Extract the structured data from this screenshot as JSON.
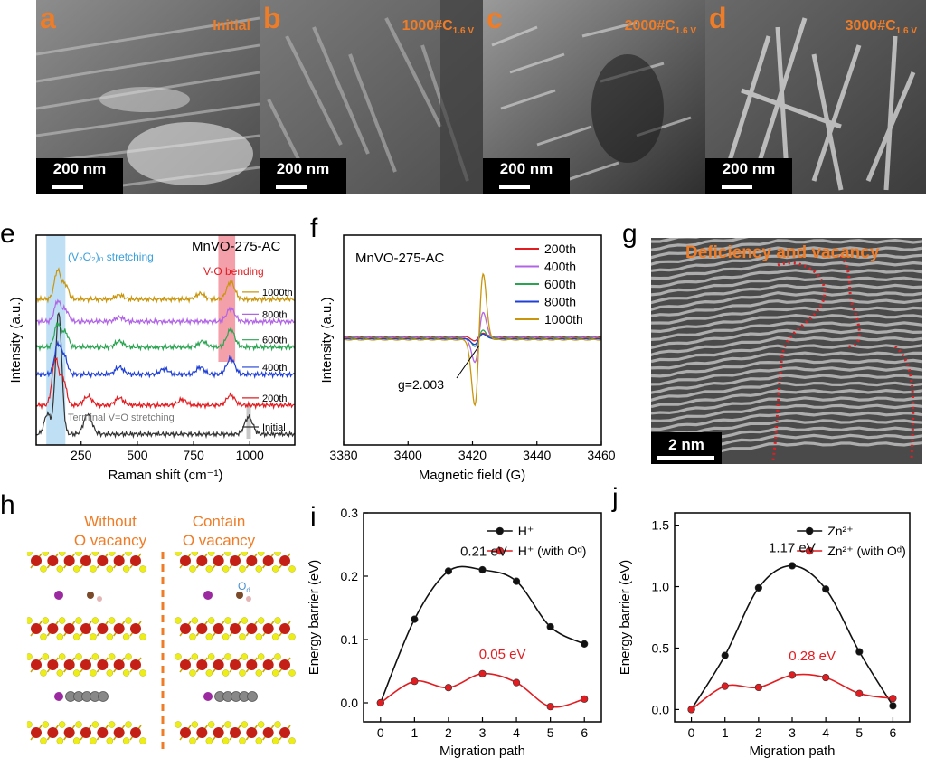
{
  "colors": {
    "accent": "#ef7c26",
    "red": "#e11d21",
    "purple": "#b164e6",
    "green": "#2aa451",
    "blue": "#1f3fd6",
    "gold": "#c9950c",
    "black": "#111111"
  },
  "sem_panels": [
    {
      "letter": "a",
      "label": "Initial",
      "sub": "",
      "scale": "200 nm"
    },
    {
      "letter": "b",
      "label": "1000#C",
      "sub": "1.6 V",
      "scale": "200 nm"
    },
    {
      "letter": "c",
      "label": "2000#C",
      "sub": "1.6 V",
      "scale": "200 nm"
    },
    {
      "letter": "d",
      "label": "3000#C",
      "sub": "1.6 V",
      "scale": "200 nm"
    }
  ],
  "panel_e": {
    "letter": "e",
    "sample": "MnVO-275-AC",
    "band1": "(V₂O₂)ₙ stretching",
    "band2": "V-O bending",
    "band3": "Terminal V=O stretching"
  },
  "panel_f": {
    "letter": "f",
    "sample": "MnVO-275-AC",
    "g_label": "g=2.003"
  },
  "panel_g": {
    "letter": "g",
    "title": "Deficiency and vacancy",
    "scale": "2 nm"
  },
  "panel_h": {
    "letter": "h",
    "left_title": [
      "Without",
      "O vacancy"
    ],
    "right_title": [
      "Contain",
      "O vacancy"
    ],
    "od_label": "O",
    "od_sub": "d"
  },
  "panel_i": {
    "letter": "i"
  },
  "panel_j": {
    "letter": "j"
  },
  "chart_data": [
    {
      "id": "e",
      "type": "line",
      "title": "",
      "xlabel": "Raman shift (cm⁻¹)",
      "ylabel": "Intensity (a.u.)",
      "xlim": [
        50,
        1200
      ],
      "xticks": [
        250,
        500,
        750,
        1000
      ],
      "series": [
        {
          "name": "Initial",
          "color": "#333333",
          "offset": 0,
          "peaks": [
            [
              100,
              0.7
            ],
            [
              150,
              4.2
            ],
            [
              280,
              0.7
            ],
            [
              995,
              0.6
            ]
          ]
        },
        {
          "name": "200th",
          "color": "#e11d21",
          "offset": 0.85,
          "peaks": [
            [
              135,
              1.6
            ],
            [
              170,
              0.9
            ],
            [
              280,
              0.3
            ],
            [
              420,
              0.25
            ],
            [
              700,
              0.2
            ],
            [
              915,
              0.35
            ]
          ]
        },
        {
          "name": "400th",
          "color": "#1f3fd6",
          "offset": 1.75,
          "peaks": [
            [
              145,
              1.0
            ],
            [
              175,
              0.6
            ],
            [
              420,
              0.25
            ],
            [
              620,
              0.2
            ],
            [
              780,
              0.25
            ],
            [
              915,
              0.55
            ]
          ]
        },
        {
          "name": "600th",
          "color": "#2aa451",
          "offset": 2.55,
          "peaks": [
            [
              145,
              0.8
            ],
            [
              180,
              0.5
            ],
            [
              420,
              0.2
            ],
            [
              790,
              0.2
            ],
            [
              915,
              0.6
            ]
          ]
        },
        {
          "name": "800th",
          "color": "#b164e6",
          "offset": 3.3,
          "peaks": [
            [
              145,
              0.7
            ],
            [
              180,
              0.4
            ],
            [
              420,
              0.15
            ],
            [
              915,
              0.45
            ]
          ]
        },
        {
          "name": "1000th",
          "color": "#c9950c",
          "offset": 3.95,
          "peaks": [
            [
              145,
              1.0
            ],
            [
              180,
              0.5
            ],
            [
              420,
              0.15
            ],
            [
              780,
              0.2
            ],
            [
              915,
              0.6
            ]
          ]
        }
      ],
      "bands": [
        {
          "label": "(V₂O₂)ₙ stretching",
          "from": 95,
          "to": 180,
          "color": "#bfe0f4"
        },
        {
          "label": "V-O bending",
          "from": 860,
          "to": 935,
          "color": "#f4a0aa"
        },
        {
          "label": "Terminal V=O stretching",
          "from": 985,
          "to": 1005,
          "color": "#c8c8c8"
        }
      ]
    },
    {
      "id": "f",
      "type": "line",
      "xlabel": "Magnetic field (G)",
      "ylabel": "Intensity (a.u.)",
      "xlim": [
        3380,
        3460
      ],
      "xticks": [
        3380,
        3400,
        3420,
        3440,
        3460
      ],
      "center": 3422,
      "legend": [
        "200th",
        "400th",
        "600th",
        "800th",
        "1000th"
      ],
      "series": [
        {
          "name": "200th",
          "color": "#e11d21",
          "amplitude": 0.06
        },
        {
          "name": "400th",
          "color": "#b164e6",
          "amplitude": 0.38
        },
        {
          "name": "600th",
          "color": "#2aa451",
          "amplitude": 0.12
        },
        {
          "name": "800th",
          "color": "#1f3fd6",
          "amplitude": 0.08
        },
        {
          "name": "1000th",
          "color": "#c9950c",
          "amplitude": 1.0
        }
      ]
    },
    {
      "id": "i",
      "type": "line",
      "xlabel": "Migration path",
      "ylabel": "Energy barrier (eV)",
      "xlim": [
        -0.5,
        6.5
      ],
      "ylim": [
        -0.03,
        0.3
      ],
      "xticks": [
        0,
        1,
        2,
        3,
        4,
        5,
        6
      ],
      "yticks": [
        0.0,
        0.1,
        0.2,
        0.3
      ],
      "ytick_labels": [
        "0.0",
        "0.1",
        "0.2",
        "0.3"
      ],
      "categories": [
        0,
        1,
        2,
        3,
        4,
        5,
        6
      ],
      "series": [
        {
          "name": "H⁺",
          "color": "#111111",
          "values": [
            0.0,
            0.132,
            0.208,
            0.21,
            0.192,
            0.12,
            0.093
          ]
        },
        {
          "name": "H⁺ (with Oᵈ)",
          "color": "#e11d21",
          "values": [
            0.0,
            0.034,
            0.024,
            0.046,
            0.032,
            -0.006,
            0.006
          ]
        }
      ],
      "annotations": [
        {
          "text": "0.21 eV",
          "x": 2.35,
          "y": 0.232,
          "color": "#111111"
        },
        {
          "text": "0.05 eV",
          "x": 2.9,
          "y": 0.07,
          "color": "#e11d21"
        }
      ]
    },
    {
      "id": "j",
      "type": "line",
      "xlabel": "Migration path",
      "ylabel": "Energy barrier (eV)",
      "xlim": [
        -0.5,
        6.5
      ],
      "ylim": [
        -0.1,
        1.6
      ],
      "xticks": [
        0,
        1,
        2,
        3,
        4,
        5,
        6
      ],
      "yticks": [
        0.0,
        0.5,
        1.0,
        1.5
      ],
      "ytick_labels": [
        "0.0",
        "0.5",
        "1.0",
        "1.5"
      ],
      "categories": [
        0,
        1,
        2,
        3,
        4,
        5,
        6
      ],
      "series": [
        {
          "name": "Zn²⁺",
          "color": "#111111",
          "values": [
            0.0,
            0.44,
            0.99,
            1.17,
            0.98,
            0.47,
            0.03
          ]
        },
        {
          "name": "Zn²⁺ (with Oᵈ)",
          "color": "#e11d21",
          "values": [
            0.0,
            0.19,
            0.18,
            0.28,
            0.26,
            0.13,
            0.09
          ]
        }
      ],
      "annotations": [
        {
          "text": "1.17 eV",
          "x": 2.3,
          "y": 1.28,
          "color": "#111111"
        },
        {
          "text": "0.28 eV",
          "x": 2.9,
          "y": 0.4,
          "color": "#e11d21"
        }
      ]
    }
  ]
}
